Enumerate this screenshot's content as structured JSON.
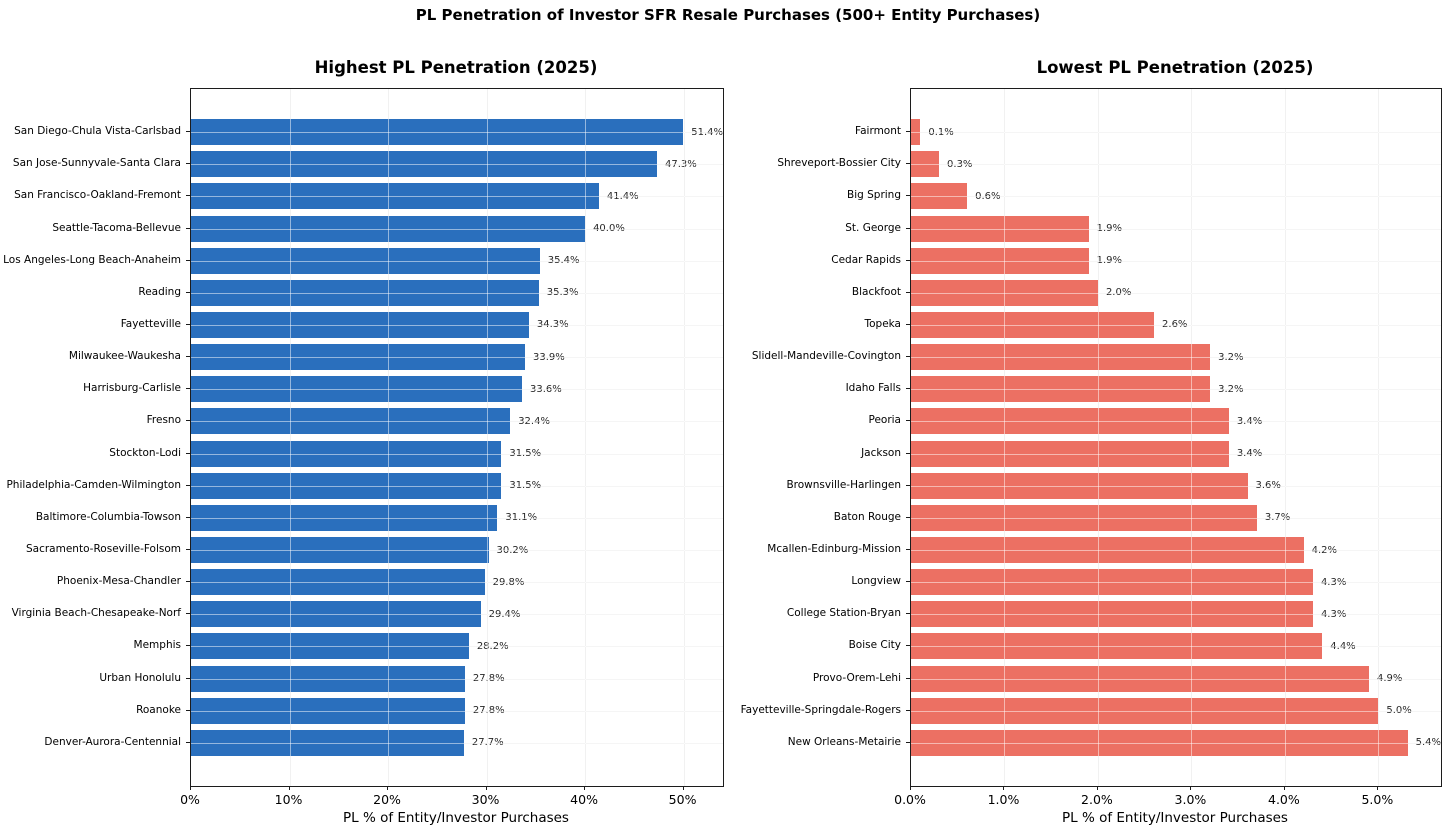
{
  "main_title": "PL Penetration of Investor SFR Resale Purchases (500+ Entity Purchases)",
  "colors": {
    "highest_bars": "#2a6fbd",
    "lowest_bars": "#ec7063",
    "grid": "#e3e3e3",
    "spine": "#1c1c1c",
    "value_text": "#262626"
  },
  "chart_data": [
    {
      "type": "bar",
      "orientation": "horizontal",
      "title": "Highest PL Penetration (2025)",
      "xlabel": "PL % of Entity/Investor Purchases",
      "bar_color": "#2a6fbd",
      "grid": true,
      "xlim": [
        0,
        54
      ],
      "xticks": [
        0,
        10,
        20,
        30,
        40,
        50
      ],
      "xtick_labels": [
        "0%",
        "10%",
        "20%",
        "30%",
        "40%",
        "50%"
      ],
      "categories": [
        "San Diego-Chula Vista-Carlsbad",
        "San Jose-Sunnyvale-Santa Clara",
        "San Francisco-Oakland-Fremont",
        "Seattle-Tacoma-Bellevue",
        "Los Angeles-Long Beach-Anaheim",
        "Reading",
        "Fayetteville",
        "Milwaukee-Waukesha",
        "Harrisburg-Carlisle",
        "Fresno",
        "Stockton-Lodi",
        "Philadelphia-Camden-Wilmington",
        "Baltimore-Columbia-Towson",
        "Sacramento-Roseville-Folsom",
        "Phoenix-Mesa-Chandler",
        "Virginia Beach-Chesapeake-Norf",
        "Memphis",
        "Urban Honolulu",
        "Roanoke",
        "Denver-Aurora-Centennial"
      ],
      "values": [
        51.4,
        47.3,
        41.4,
        40.0,
        35.4,
        35.3,
        34.3,
        33.9,
        33.6,
        32.4,
        31.5,
        31.5,
        31.1,
        30.2,
        29.8,
        29.4,
        28.2,
        27.8,
        27.8,
        27.7
      ],
      "labels": [
        "51.4%",
        "47.3%",
        "41.4%",
        "40.0%",
        "35.4%",
        "35.3%",
        "34.3%",
        "33.9%",
        "33.6%",
        "32.4%",
        "31.5%",
        "31.5%",
        "31.1%",
        "30.2%",
        "29.8%",
        "29.4%",
        "28.2%",
        "27.8%",
        "27.8%",
        "27.7%"
      ]
    },
    {
      "type": "bar",
      "orientation": "horizontal",
      "title": "Lowest PL Penetration (2025)",
      "xlabel": "PL % of Entity/Investor Purchases",
      "bar_color": "#ec7063",
      "grid": true,
      "xlim": [
        0,
        5.67
      ],
      "xticks": [
        0,
        1,
        2,
        3,
        4,
        5
      ],
      "xtick_labels": [
        "0.0%",
        "1.0%",
        "2.0%",
        "3.0%",
        "4.0%",
        "5.0%"
      ],
      "categories": [
        "Fairmont",
        "Shreveport-Bossier City",
        "Big Spring",
        "St. George",
        "Cedar Rapids",
        "Blackfoot",
        "Topeka",
        "Slidell-Mandeville-Covington",
        "Idaho Falls",
        "Peoria",
        "Jackson",
        "Brownsville-Harlingen",
        "Baton Rouge",
        "Mcallen-Edinburg-Mission",
        "Longview",
        "College Station-Bryan",
        "Boise City",
        "Provo-Orem-Lehi",
        "Fayetteville-Springdale-Rogers",
        "New Orleans-Metairie"
      ],
      "values": [
        0.1,
        0.3,
        0.6,
        1.9,
        1.9,
        2.0,
        2.6,
        3.2,
        3.2,
        3.4,
        3.4,
        3.6,
        3.7,
        4.2,
        4.3,
        4.3,
        4.4,
        4.9,
        5.0,
        5.4
      ],
      "labels": [
        "0.1%",
        "0.3%",
        "0.6%",
        "1.9%",
        "1.9%",
        "2.0%",
        "2.6%",
        "3.2%",
        "3.2%",
        "3.4%",
        "3.4%",
        "3.6%",
        "3.7%",
        "4.2%",
        "4.3%",
        "4.3%",
        "4.4%",
        "4.9%",
        "5.0%",
        "5.4%"
      ]
    }
  ]
}
